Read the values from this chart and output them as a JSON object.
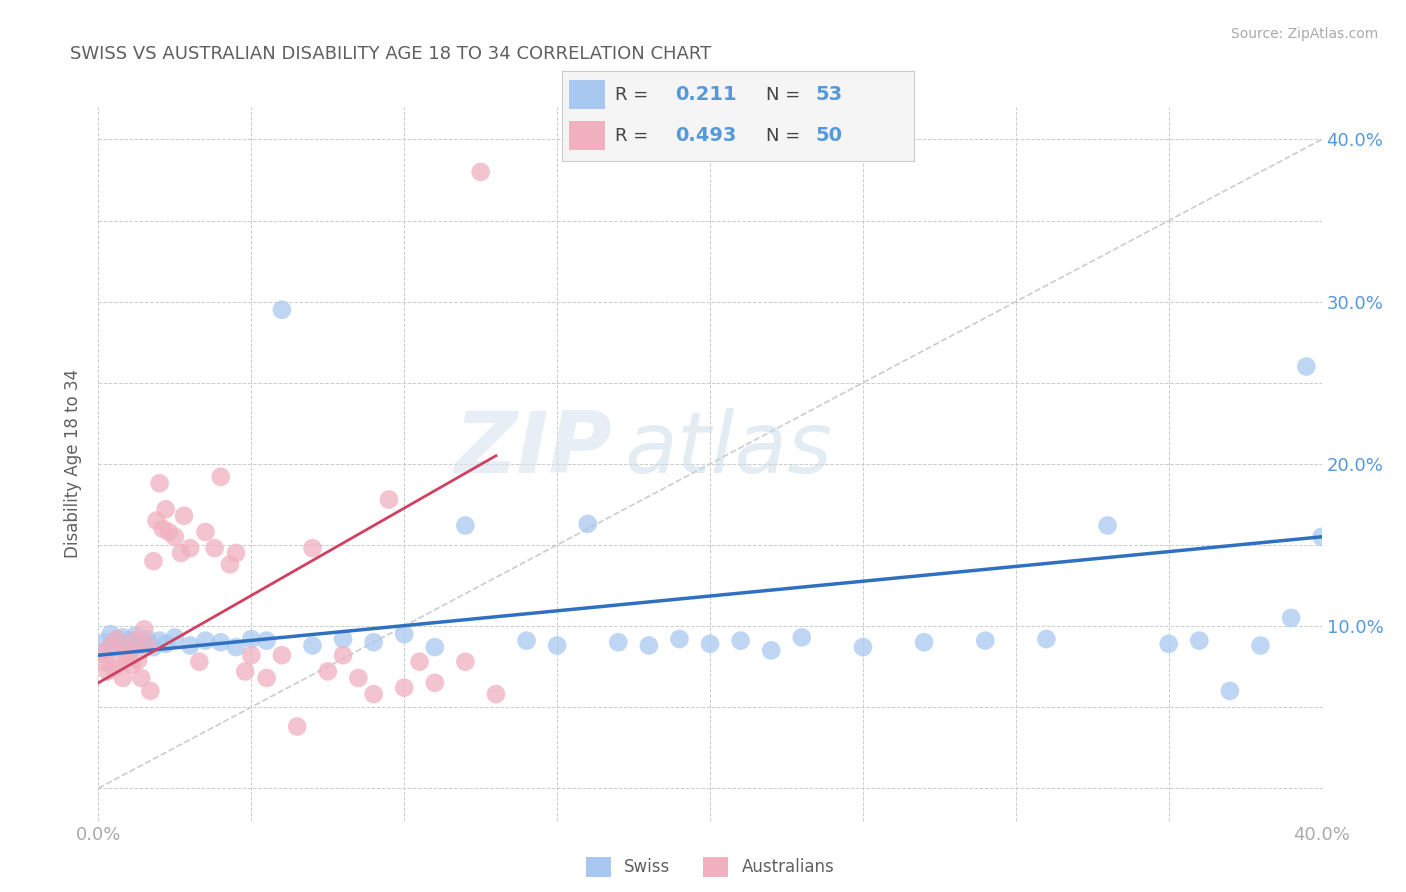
{
  "title": "SWISS VS AUSTRALIAN DISABILITY AGE 18 TO 34 CORRELATION CHART",
  "source_text": "Source: ZipAtlas.com",
  "ylabel": "Disability Age 18 to 34",
  "xlim": [
    0.0,
    0.4
  ],
  "ylim": [
    -0.02,
    0.42
  ],
  "swiss_color": "#a8c8f0",
  "australian_color": "#f0b0c0",
  "trendline_swiss_color": "#3070c0",
  "trendline_australian_color": "#d04060",
  "R_swiss": 0.211,
  "N_swiss": 53,
  "R_australian": 0.493,
  "N_australian": 50,
  "legend_labels": [
    "Swiss",
    "Australians"
  ],
  "watermark_zip": "ZIP",
  "watermark_atlas": "atlas",
  "swiss_x": [
    0.002,
    0.003,
    0.004,
    0.005,
    0.006,
    0.007,
    0.008,
    0.009,
    0.01,
    0.011,
    0.012,
    0.013,
    0.015,
    0.016,
    0.018,
    0.02,
    0.022,
    0.025,
    0.03,
    0.035,
    0.04,
    0.045,
    0.05,
    0.055,
    0.06,
    0.07,
    0.08,
    0.09,
    0.1,
    0.11,
    0.12,
    0.14,
    0.15,
    0.16,
    0.17,
    0.18,
    0.19,
    0.2,
    0.21,
    0.22,
    0.23,
    0.25,
    0.27,
    0.29,
    0.31,
    0.33,
    0.35,
    0.36,
    0.37,
    0.38,
    0.39,
    0.395,
    0.4
  ],
  "swiss_y": [
    0.09,
    0.085,
    0.095,
    0.088,
    0.092,
    0.087,
    0.093,
    0.089,
    0.091,
    0.086,
    0.094,
    0.088,
    0.09,
    0.092,
    0.087,
    0.091,
    0.089,
    0.093,
    0.088,
    0.091,
    0.09,
    0.087,
    0.092,
    0.091,
    0.295,
    0.088,
    0.092,
    0.09,
    0.095,
    0.087,
    0.162,
    0.091,
    0.088,
    0.163,
    0.09,
    0.088,
    0.092,
    0.089,
    0.091,
    0.085,
    0.093,
    0.087,
    0.09,
    0.091,
    0.092,
    0.162,
    0.089,
    0.091,
    0.06,
    0.088,
    0.105,
    0.26,
    0.155
  ],
  "australian_x": [
    0.001,
    0.002,
    0.003,
    0.004,
    0.005,
    0.006,
    0.007,
    0.008,
    0.009,
    0.01,
    0.011,
    0.012,
    0.013,
    0.014,
    0.015,
    0.016,
    0.017,
    0.018,
    0.019,
    0.02,
    0.021,
    0.022,
    0.023,
    0.025,
    0.027,
    0.028,
    0.03,
    0.033,
    0.035,
    0.038,
    0.04,
    0.043,
    0.045,
    0.048,
    0.05,
    0.055,
    0.06,
    0.065,
    0.07,
    0.075,
    0.08,
    0.085,
    0.09,
    0.095,
    0.1,
    0.105,
    0.11,
    0.12,
    0.125,
    0.13
  ],
  "australian_y": [
    0.083,
    0.078,
    0.072,
    0.088,
    0.074,
    0.092,
    0.079,
    0.068,
    0.082,
    0.085,
    0.076,
    0.091,
    0.079,
    0.068,
    0.098,
    0.088,
    0.06,
    0.14,
    0.165,
    0.188,
    0.16,
    0.172,
    0.158,
    0.155,
    0.145,
    0.168,
    0.148,
    0.078,
    0.158,
    0.148,
    0.192,
    0.138,
    0.145,
    0.072,
    0.082,
    0.068,
    0.082,
    0.038,
    0.148,
    0.072,
    0.082,
    0.068,
    0.058,
    0.178,
    0.062,
    0.078,
    0.065,
    0.078,
    0.38,
    0.058
  ],
  "background_color": "#ffffff",
  "grid_color": "#cccccc",
  "title_color": "#606060",
  "axis_label_color": "#606060",
  "tick_label_color": "#aaaaaa",
  "right_tick_color": "#5599dd",
  "legend_bg": "#f5f5f5",
  "legend_border": "#cccccc"
}
